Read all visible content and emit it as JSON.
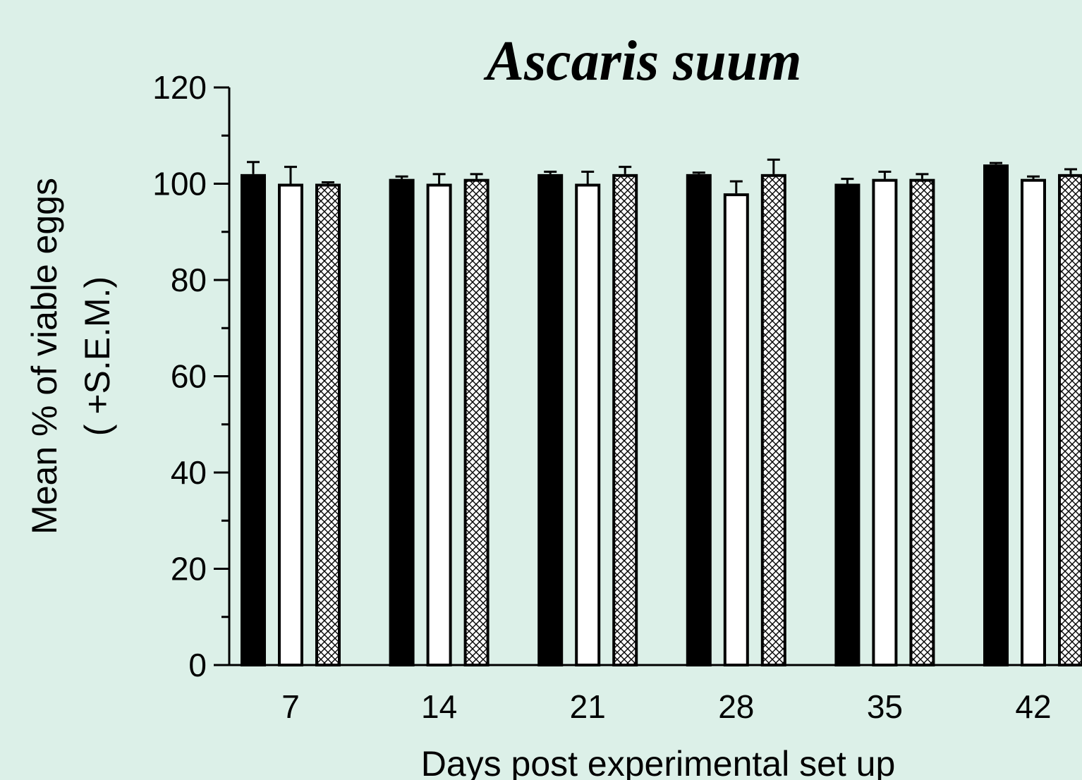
{
  "chart_data": {
    "type": "bar",
    "title": "Ascaris suum",
    "xlabel": "Days post experimental set up",
    "ylabel_line1": "Mean % of viable eggs",
    "ylabel_line2": "( +S.E.M.)",
    "ylim": [
      0,
      120
    ],
    "yticks": [
      0,
      20,
      40,
      60,
      80,
      100,
      120
    ],
    "categories": [
      "7",
      "14",
      "21",
      "28",
      "35",
      "42"
    ],
    "series": [
      {
        "fill": "solid-black",
        "values": [
          102,
          101,
          102,
          102,
          100,
          104
        ],
        "sem": [
          2.5,
          0.5,
          0.5,
          0.3,
          1.0,
          0.3
        ]
      },
      {
        "fill": "white",
        "values": [
          100,
          100,
          100,
          98,
          101,
          101
        ],
        "sem": [
          3.5,
          2.0,
          2.5,
          2.5,
          1.5,
          0.5
        ]
      },
      {
        "fill": "crosshatch",
        "values": [
          100,
          101,
          102,
          102,
          101,
          102
        ],
        "sem": [
          0.3,
          1.0,
          1.5,
          3.0,
          1.0,
          1.0
        ]
      }
    ],
    "grid": false,
    "legend": "none",
    "colors": {
      "background": "#dcf0e8",
      "solid": "#000000",
      "open": "#ffffff",
      "hatch_bg": "#ffffff",
      "hatch_line": "#000000"
    }
  }
}
